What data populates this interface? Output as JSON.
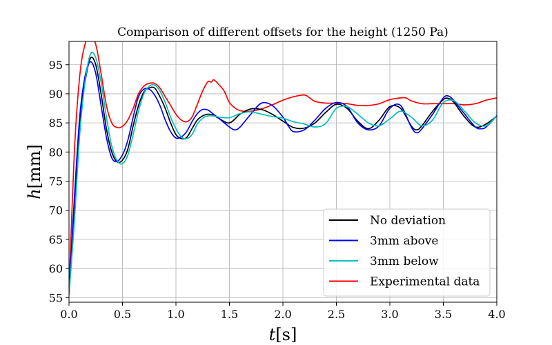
{
  "chart_data": {
    "type": "line",
    "title": "Comparison of different offsets for the height (1250 Pa)",
    "xlabel": {
      "symbol": "t",
      "unit": "[s]"
    },
    "ylabel": {
      "symbol": "h",
      "unit": "[mm]"
    },
    "xlim": [
      0,
      4
    ],
    "ylim": [
      54.2,
      99
    ],
    "xticks": [
      0,
      0.5,
      1,
      1.5,
      2,
      2.5,
      3,
      3.5,
      4
    ],
    "xtick_labels": [
      "0.0",
      "0.5",
      "1.0",
      "1.5",
      "2.0",
      "2.5",
      "3.0",
      "3.5",
      "4.0"
    ],
    "yticks": [
      55,
      60,
      65,
      70,
      75,
      80,
      85,
      90,
      95
    ],
    "ytick_labels": [
      "55",
      "60",
      "65",
      "70",
      "75",
      "80",
      "85",
      "90",
      "95"
    ],
    "grid": true,
    "legend_position": "lower-right",
    "series": [
      {
        "name": "No deviation",
        "color": "#000000",
        "x": [
          0,
          0.05,
          0.1,
          0.15,
          0.2,
          0.25,
          0.3,
          0.35,
          0.4,
          0.45,
          0.5,
          0.55,
          0.6,
          0.65,
          0.7,
          0.75,
          0.8,
          0.85,
          0.9,
          0.95,
          1.0,
          1.05,
          1.1,
          1.15,
          1.2,
          1.25,
          1.3,
          1.35,
          1.4,
          1.5,
          1.6,
          1.7,
          1.8,
          1.9,
          2.0,
          2.1,
          2.2,
          2.3,
          2.4,
          2.5,
          2.6,
          2.7,
          2.8,
          2.9,
          3.0,
          3.1,
          3.2,
          3.25,
          3.3,
          3.4,
          3.5,
          3.55,
          3.6,
          3.7,
          3.8,
          3.9,
          4.0
        ],
        "y": [
          55.5,
          70,
          85,
          92,
          96.1,
          95,
          90,
          84,
          80,
          78.3,
          78.6,
          80.5,
          84.5,
          88,
          90.3,
          91,
          91,
          89.5,
          87.5,
          85,
          83,
          82.3,
          82.5,
          84,
          85.5,
          86.2,
          86.5,
          86.3,
          85.8,
          85,
          86.5,
          87.4,
          87.3,
          86.5,
          85.3,
          84.2,
          84.1,
          85,
          86.8,
          88.2,
          87.5,
          85.3,
          84,
          85.5,
          87.8,
          87.5,
          84.5,
          83.8,
          84.5,
          87,
          89,
          89.2,
          88.5,
          86,
          84.3,
          84.8,
          86.2
        ]
      },
      {
        "name": "3mm above",
        "color": "#0000ff",
        "x": [
          0,
          0.05,
          0.1,
          0.15,
          0.2,
          0.25,
          0.3,
          0.35,
          0.4,
          0.45,
          0.5,
          0.55,
          0.6,
          0.65,
          0.7,
          0.75,
          0.8,
          0.85,
          0.9,
          0.95,
          1.0,
          1.05,
          1.1,
          1.15,
          1.2,
          1.25,
          1.3,
          1.35,
          1.4,
          1.5,
          1.55,
          1.6,
          1.7,
          1.8,
          1.9,
          2.0,
          2.05,
          2.1,
          2.2,
          2.3,
          2.4,
          2.5,
          2.6,
          2.7,
          2.8,
          2.9,
          3.0,
          3.1,
          3.2,
          3.25,
          3.3,
          3.4,
          3.5,
          3.55,
          3.6,
          3.7,
          3.8,
          3.85,
          3.9,
          4.0
        ],
        "y": [
          55.5,
          72,
          86,
          93,
          95.5,
          93.5,
          88,
          82.5,
          79,
          78.4,
          79.5,
          82,
          86,
          89.5,
          90.8,
          90.8,
          89.8,
          88,
          85.5,
          83.5,
          82.4,
          82.6,
          83.5,
          85.2,
          86.6,
          87.3,
          87.2,
          86.5,
          85.8,
          84.3,
          83.8,
          84.3,
          86.5,
          88.4,
          88,
          86,
          84.5,
          83.5,
          83.8,
          85.5,
          87.5,
          88.5,
          87.8,
          85,
          83.8,
          84.5,
          87.5,
          88,
          84.3,
          83.3,
          84,
          86.5,
          89.3,
          89.6,
          88.8,
          86.5,
          84.3,
          84,
          84.3,
          86.2
        ]
      },
      {
        "name": "3mm below",
        "color": "#00bfbf",
        "x": [
          0,
          0.05,
          0.1,
          0.15,
          0.2,
          0.25,
          0.3,
          0.35,
          0.4,
          0.45,
          0.5,
          0.55,
          0.6,
          0.65,
          0.7,
          0.75,
          0.8,
          0.85,
          0.9,
          0.95,
          1.0,
          1.05,
          1.1,
          1.15,
          1.2,
          1.25,
          1.3,
          1.35,
          1.4,
          1.5,
          1.6,
          1.7,
          1.8,
          1.9,
          2.0,
          2.1,
          2.2,
          2.3,
          2.4,
          2.5,
          2.6,
          2.7,
          2.8,
          2.9,
          3.0,
          3.1,
          3.2,
          3.3,
          3.4,
          3.5,
          3.6,
          3.7,
          3.8,
          3.9,
          4.0
        ],
        "y": [
          55.5,
          68,
          83,
          92,
          96.8,
          96.2,
          92,
          86,
          81,
          78.5,
          78,
          79.5,
          83,
          87,
          90,
          91.3,
          91.5,
          90.5,
          88.5,
          86,
          84,
          82.6,
          82.3,
          83,
          84.8,
          85.8,
          86.2,
          86.2,
          86,
          85.9,
          86.6,
          86.9,
          86.5,
          86.1,
          85.8,
          85.2,
          84.8,
          84.3,
          84.9,
          87.5,
          87.8,
          86.5,
          85,
          84.5,
          85.7,
          87,
          86,
          84.5,
          85.5,
          88.5,
          88.8,
          87,
          85,
          84.5,
          86.3
        ]
      },
      {
        "name": "Experimental data",
        "color": "#ff0000",
        "x": [
          0,
          0.05,
          0.1,
          0.15,
          0.2,
          0.25,
          0.3,
          0.35,
          0.4,
          0.45,
          0.5,
          0.55,
          0.6,
          0.65,
          0.7,
          0.75,
          0.8,
          0.85,
          0.9,
          0.95,
          1.0,
          1.05,
          1.1,
          1.15,
          1.2,
          1.25,
          1.3,
          1.33,
          1.35,
          1.37,
          1.4,
          1.45,
          1.5,
          1.55,
          1.6,
          1.7,
          1.8,
          1.9,
          2.0,
          2.1,
          2.2,
          2.25,
          2.3,
          2.4,
          2.5,
          2.6,
          2.7,
          2.8,
          2.9,
          3.0,
          3.1,
          3.15,
          3.2,
          3.3,
          3.4,
          3.5,
          3.6,
          3.7,
          3.8,
          3.9,
          4.0
        ],
        "y": [
          56,
          80,
          93,
          98.5,
          99.8,
          98.5,
          93.5,
          88,
          85,
          84.2,
          84.4,
          85.5,
          87.5,
          90,
          91.3,
          91.8,
          91.8,
          91,
          89.5,
          88,
          86.5,
          85.5,
          85.2,
          86,
          88.2,
          90.5,
          92.1,
          92,
          92.4,
          92.2,
          91.6,
          90.5,
          88.5,
          87.6,
          87.1,
          87,
          87.4,
          88.1,
          88.9,
          89.5,
          89.8,
          89.3,
          88.7,
          88.4,
          88.4,
          88.3,
          88,
          88,
          88.3,
          89,
          89.3,
          89.3,
          88.8,
          88.3,
          88.3,
          88.3,
          88.3,
          88.1,
          88.3,
          88.9,
          89.3
        ]
      }
    ]
  }
}
